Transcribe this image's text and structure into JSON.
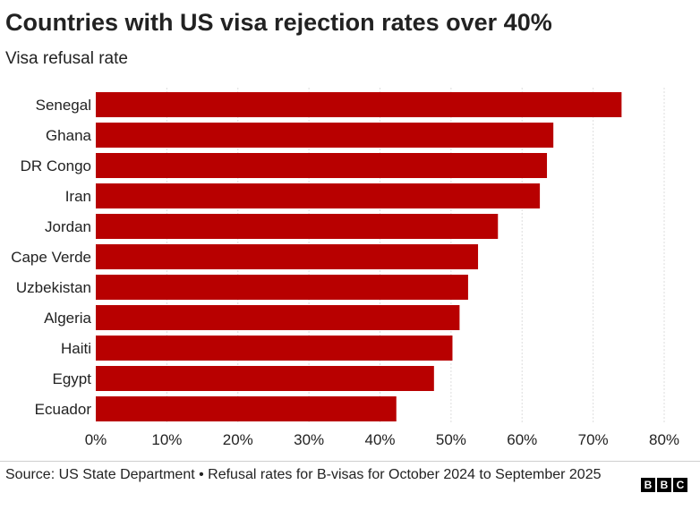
{
  "title": "Countries with US visa rejection rates over 40%",
  "subtitle": "Visa refusal rate",
  "source": "Source: US State Department • Refusal rates for B-visas for October 2024 to September 2025",
  "logo": [
    "B",
    "B",
    "C"
  ],
  "colors": {
    "bar": "#b80000",
    "gridline": "#dedede",
    "text": "#222222"
  },
  "chart_data": {
    "type": "bar",
    "orientation": "horizontal",
    "categories": [
      "Senegal",
      "Ghana",
      "DR Congo",
      "Iran",
      "Jordan",
      "Cape Verde",
      "Uzbekistan",
      "Algeria",
      "Haiti",
      "Egypt",
      "Ecuador"
    ],
    "values": [
      74,
      64.4,
      63.5,
      62.5,
      56.6,
      53.8,
      52.4,
      51.2,
      50.2,
      47.6,
      42.3
    ],
    "xlim": [
      0,
      80
    ],
    "xticks": [
      0,
      10,
      20,
      30,
      40,
      50,
      60,
      70,
      80
    ],
    "tick_suffix": "%",
    "grid": true
  }
}
